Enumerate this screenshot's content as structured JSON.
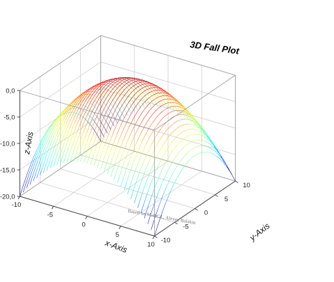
{
  "chart_data": {
    "type": "surface-fall",
    "title": "3D Fall Plot",
    "xlabel": "x-Axis",
    "ylabel": "y-Axis",
    "zlabel": "z-Axis",
    "credit": "Based on MathGL, Alexey Balakin",
    "function": "z = -(x^2 + y^2)/10",
    "xlim": [
      -10,
      10
    ],
    "ylim": [
      -10,
      10
    ],
    "zlim": [
      -20,
      0
    ],
    "x_ticks": [
      "-10",
      "-5",
      "0",
      "5",
      "10"
    ],
    "y_ticks": [
      "-10",
      "-5",
      "0",
      "5",
      "10"
    ],
    "z_ticks": [
      "0,0",
      "-5,0",
      "-10,0",
      "-15,0",
      "-20,0"
    ],
    "z_tick_values": [
      0,
      -5,
      -10,
      -15,
      -20
    ],
    "x_tick_values": [
      -10,
      -5,
      0,
      5,
      10
    ],
    "y_tick_values": [
      -10,
      -5,
      0,
      5,
      10
    ],
    "grid": true,
    "colormap": "jet (blue at -20 to red at 0)",
    "colors": {
      "axis": "#444444",
      "grid": "#c8c8c8",
      "background": "#ffffff"
    }
  }
}
